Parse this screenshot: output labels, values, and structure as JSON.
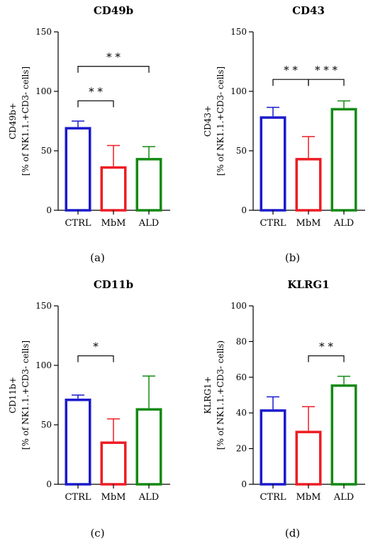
{
  "colors": {
    "CTRL": "#1a1acc",
    "MbM": "#ee1c24",
    "ALD": "#138a13",
    "axis": "#000000"
  },
  "chart_data": [
    {
      "type": "bar",
      "caption": "(a)",
      "title": "CD49b",
      "ylabel_line1": "CD49b+",
      "ylabel_line2": "[% of NK1.1.+CD3- cells]",
      "categories": [
        "CTRL",
        "MbM",
        "ALD"
      ],
      "values": [
        70,
        37,
        44
      ],
      "error": [
        5,
        17.5,
        9.5
      ],
      "ylim": [
        0,
        150
      ],
      "yticks": [
        "0",
        "50",
        "100",
        "150"
      ],
      "significance": [
        {
          "from": 0,
          "to": 1,
          "label": "* *",
          "y": 92
        },
        {
          "from": 0,
          "to": 2,
          "label": "* *",
          "y": 121
        }
      ]
    },
    {
      "type": "bar",
      "caption": "(b)",
      "title": "CD43",
      "ylabel_line1": "CD43+",
      "ylabel_line2": "[% of NK1.1.+CD3- cells]",
      "categories": [
        "CTRL",
        "MbM",
        "ALD"
      ],
      "values": [
        79,
        44,
        86
      ],
      "error": [
        7.5,
        18,
        6
      ],
      "ylim": [
        0,
        150
      ],
      "yticks": [
        "0",
        "50",
        "100",
        "150"
      ],
      "significance": [
        {
          "from": 0,
          "to": 1,
          "label": "* *",
          "y": 110
        },
        {
          "from": 1,
          "to": 2,
          "label": "* * *",
          "y": 110
        }
      ]
    },
    {
      "type": "bar",
      "caption": "(c)",
      "title": "CD11b",
      "ylabel_line1": "CD11b+",
      "ylabel_line2": "[% of NK1.1.+CD3- cells]",
      "categories": [
        "CTRL",
        "MbM",
        "ALD"
      ],
      "values": [
        72,
        36,
        64
      ],
      "error": [
        3,
        19,
        27
      ],
      "ylim": [
        0,
        150
      ],
      "yticks": [
        "0",
        "50",
        "100",
        "150"
      ],
      "significance": [
        {
          "from": 0,
          "to": 1,
          "label": "*",
          "y": 108
        }
      ]
    },
    {
      "type": "bar",
      "caption": "(d)",
      "title": "KLRG1",
      "ylabel_line1": "KLRG1+",
      "ylabel_line2": "[% of NK1.1.+CD3- cells)",
      "categories": [
        "CTRL",
        "MbM",
        "ALD"
      ],
      "values": [
        42,
        30,
        56
      ],
      "error": [
        7,
        13.5,
        4.5
      ],
      "ylim": [
        0,
        100
      ],
      "yticks": [
        "0",
        "20",
        "40",
        "60",
        "80",
        "100"
      ],
      "significance": [
        {
          "from": 1,
          "to": 2,
          "label": "* *",
          "y": 72
        }
      ]
    }
  ]
}
